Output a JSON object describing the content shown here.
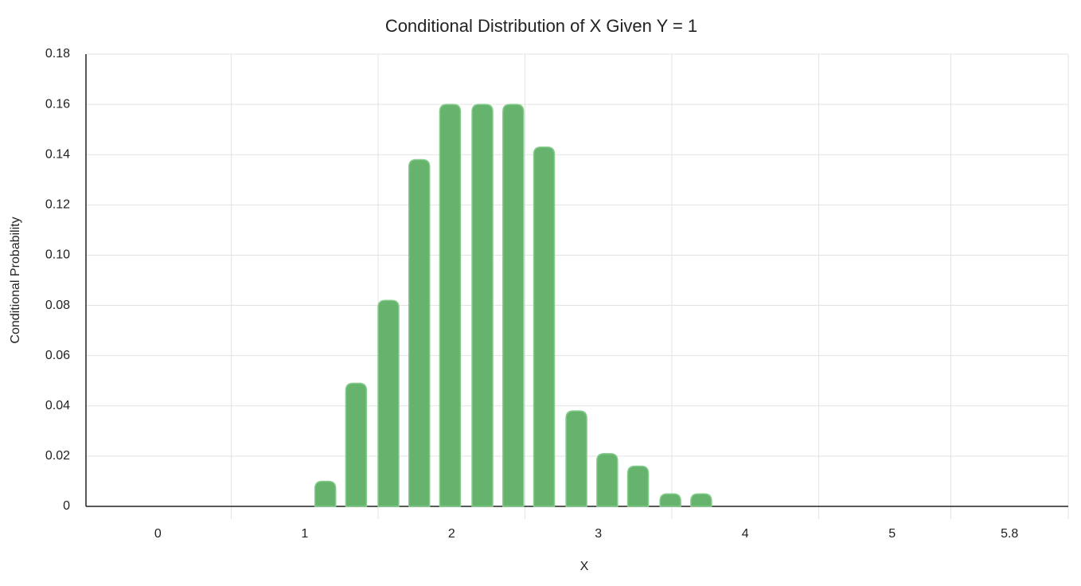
{
  "chart_data": {
    "type": "bar",
    "title": "Conditional Distribution of X Given Y = 1",
    "x_label": "X",
    "y_label": "Conditional Probability",
    "x": [
      1.14,
      1.35,
      1.57,
      1.78,
      1.99,
      2.21,
      2.42,
      2.63,
      2.85,
      3.06,
      3.27,
      3.49,
      3.7
    ],
    "values": [
      0.01,
      0.049,
      0.082,
      0.138,
      0.16,
      0.16,
      0.16,
      0.143,
      0.038,
      0.021,
      0.016,
      0.005,
      0.005
    ],
    "color": "#66b36e",
    "xlim": [
      -0.49,
      6.2
    ],
    "xticks": [
      0,
      1,
      2,
      3,
      4,
      5,
      5.8
    ],
    "ylim": [
      0,
      0.18
    ],
    "yticks": [
      0,
      0.02,
      0.04,
      0.06,
      0.08,
      {
        "value": 0.1,
        "label": "0.10"
      },
      0.12,
      0.14,
      0.16,
      0.18
    ],
    "grid": true
  }
}
